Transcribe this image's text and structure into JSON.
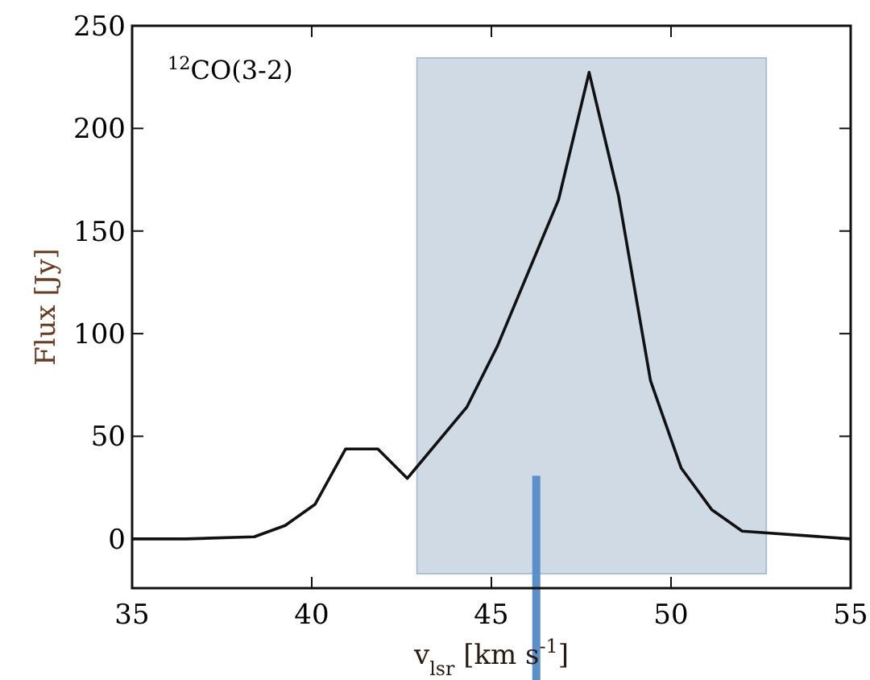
{
  "chart_data": {
    "type": "line",
    "xlabel": "v$_{lsr}$ [km s$^{-1}$]",
    "ylabel": "Flux [Jy]",
    "annotations": [
      "$^{12}$CO(3-2)"
    ],
    "x": [
      35,
      36.5,
      38.4,
      39.26,
      40.09,
      40.94,
      41.84,
      42.66,
      44.32,
      45.17,
      46.87,
      47.72,
      48.54,
      49.43,
      50.28,
      51.13,
      51.98,
      55
    ],
    "series": [
      {
        "color": "#111111",
        "values": [
          0,
          0,
          1,
          6.5,
          16.8,
          43.8,
          43.8,
          29.5,
          64.3,
          94,
          165.3,
          227.3,
          167,
          77,
          34.6,
          14.3,
          3.8,
          0
        ]
      }
    ],
    "xlim": [
      35,
      55
    ],
    "ylim": [
      -24,
      250
    ],
    "xticks": [
      35,
      40,
      45,
      50,
      55
    ],
    "yticks": [
      0,
      50,
      100,
      150,
      200,
      250
    ],
    "grid": false,
    "marker": "none",
    "line_style": "solid",
    "bands": [
      {
        "axis": "x",
        "from": 42.93,
        "to": 52.65,
        "color": "#d0dae5"
      }
    ],
    "ref_lines": [
      {
        "axis": "x",
        "value": 46.25,
        "color": "#5b8fc9"
      }
    ]
  }
}
